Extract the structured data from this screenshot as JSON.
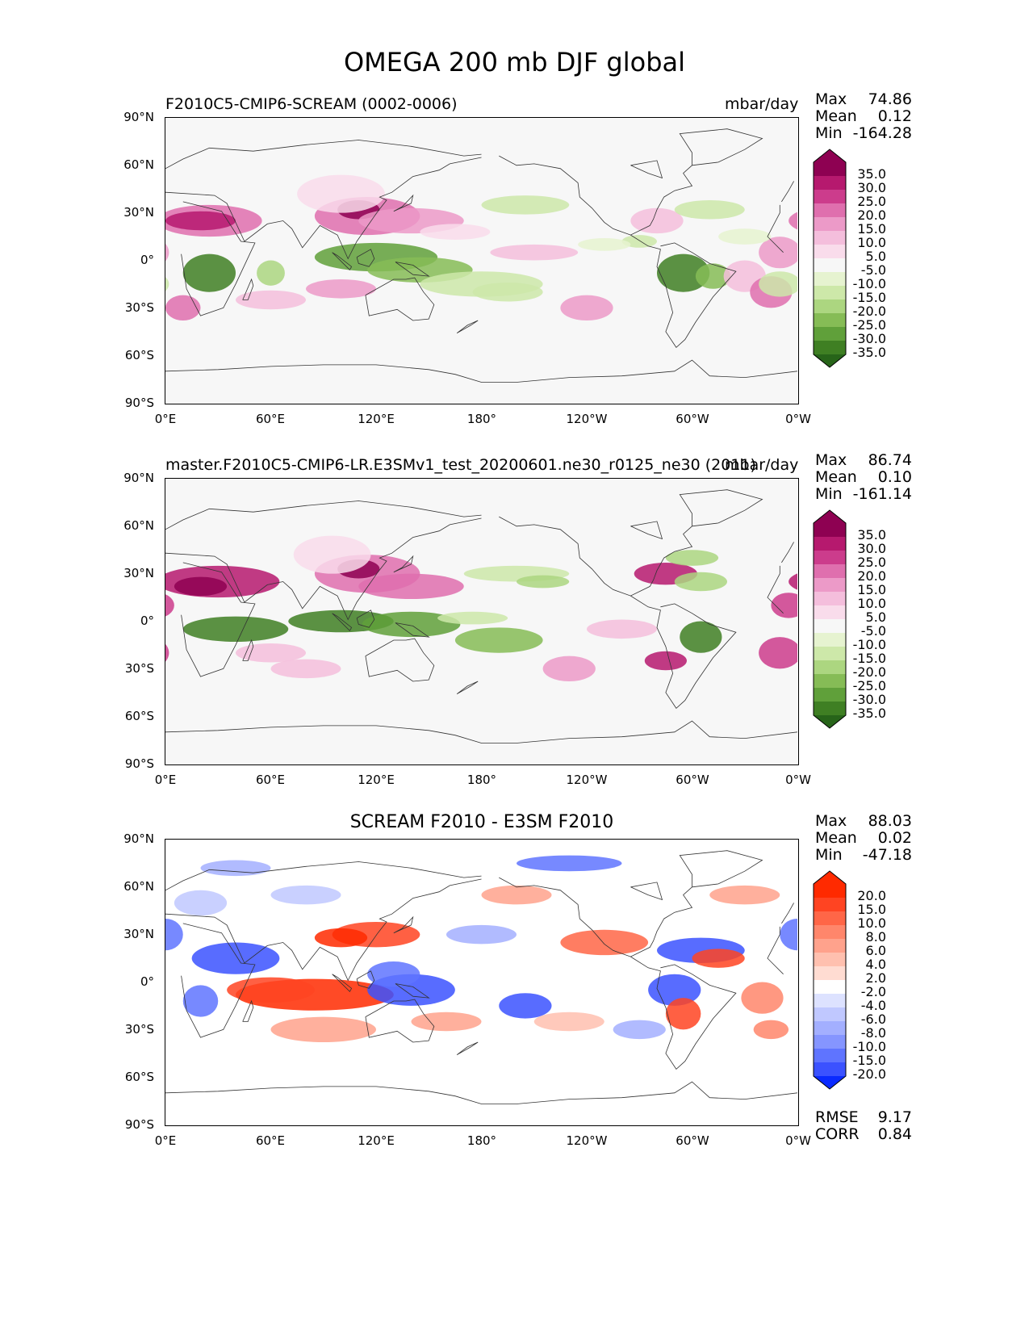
{
  "figure": {
    "title": "OMEGA 200 mb DJF global"
  },
  "panels": [
    {
      "left_title": "F2010C5-CMIP6-SCREAM (0002-0006)",
      "center_title": "",
      "units": "mbar/day",
      "stats": {
        "max_label": "Max",
        "max": "74.86",
        "mean_label": "Mean",
        "mean": "0.12",
        "min_label": "Min",
        "min": "-164.28"
      },
      "colorbar": {
        "labels": [
          "35.0",
          "30.0",
          "25.0",
          "20.0",
          "15.0",
          "10.0",
          "5.0",
          "-5.0",
          "-10.0",
          "-15.0",
          "-20.0",
          "-25.0",
          "-30.0",
          "-35.0"
        ],
        "colors": [
          "#8e0152",
          "#b6196e",
          "#cc3c8c",
          "#df6fae",
          "#ec9ac8",
          "#f4bedc",
          "#f9dceb",
          "#f7f7f7",
          "#e6f3d0",
          "#cde8a9",
          "#acd680",
          "#86bc56",
          "#60a03a",
          "#3f7f23",
          "#276419"
        ]
      }
    },
    {
      "left_title": "master.F2010C5-CMIP6-LR.E3SMv1_test_20200601.ne30_r0125_ne30 (2011)",
      "center_title": "",
      "units": "mbar/day",
      "stats": {
        "max_label": "Max",
        "max": "86.74",
        "mean_label": "Mean",
        "mean": "0.10",
        "min_label": "Min",
        "min": "-161.14"
      },
      "colorbar": {
        "labels": [
          "35.0",
          "30.0",
          "25.0",
          "20.0",
          "15.0",
          "10.0",
          "5.0",
          "-5.0",
          "-10.0",
          "-15.0",
          "-20.0",
          "-25.0",
          "-30.0",
          "-35.0"
        ],
        "colors": [
          "#8e0152",
          "#b6196e",
          "#cc3c8c",
          "#df6fae",
          "#ec9ac8",
          "#f4bedc",
          "#f9dceb",
          "#f7f7f7",
          "#e6f3d0",
          "#cde8a9",
          "#acd680",
          "#86bc56",
          "#60a03a",
          "#3f7f23",
          "#276419"
        ]
      }
    },
    {
      "left_title": "",
      "center_title": "SCREAM F2010 - E3SM F2010",
      "units": "",
      "stats": {
        "max_label": "Max",
        "max": "88.03",
        "mean_label": "Mean",
        "mean": "0.02",
        "min_label": "Min",
        "min": "-47.18"
      },
      "rmse_label": "RMSE",
      "rmse": "9.17",
      "corr_label": "CORR",
      "corr": "0.84",
      "colorbar": {
        "labels": [
          "20.0",
          "15.0",
          "10.0",
          "8.0",
          "6.0",
          "4.0",
          "2.0",
          "-2.0",
          "-4.0",
          "-6.0",
          "-8.0",
          "-10.0",
          "-15.0",
          "-20.0"
        ],
        "colors": [
          "#ff2a00",
          "#ff4422",
          "#ff6647",
          "#ff866b",
          "#ffa28c",
          "#ffc0af",
          "#ffdcd2",
          "#ffffff",
          "#dde2ff",
          "#c0c8ff",
          "#a3afff",
          "#8595ff",
          "#5f74ff",
          "#3b52ff",
          "#0a2aff"
        ]
      }
    }
  ],
  "axes": {
    "y_ticks": [
      "90°N",
      "60°N",
      "30°N",
      "0°",
      "30°S",
      "60°S",
      "90°S"
    ],
    "x_ticks": [
      "0°E",
      "60°E",
      "120°E",
      "180°",
      "120°W",
      "60°W",
      "0°W"
    ]
  },
  "map_colors": {
    "background": "#f7f7f7",
    "coast": "#333333"
  }
}
